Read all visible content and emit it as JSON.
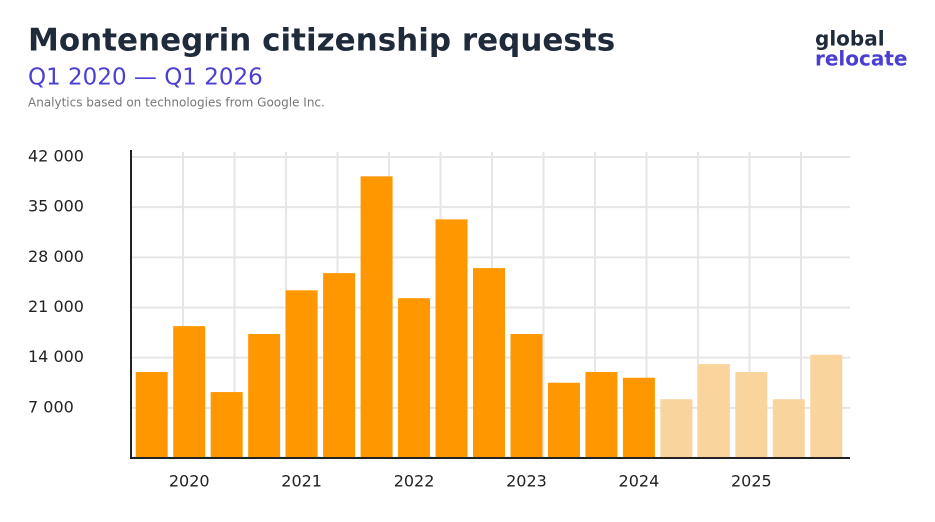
{
  "chart_data": {
    "type": "bar",
    "title": "Montenegrin citizenship requests",
    "subtitle": "Q1 2020 — Q1 2026",
    "source": "Analytics based on technologies from Google Inc.",
    "logo": [
      "global",
      "relocate"
    ],
    "categories": [
      null,
      "2020",
      null,
      null,
      "2021",
      null,
      null,
      "2022",
      null,
      null,
      "2023",
      null,
      null,
      "2024",
      null,
      null,
      "2025",
      null,
      null
    ],
    "values": [
      12000,
      18400,
      9200,
      17300,
      23400,
      25800,
      39300,
      22300,
      33300,
      26500,
      17300,
      10500,
      12000,
      11200,
      8200,
      13100,
      12000,
      8200,
      14400
    ],
    "colors": [
      "#ff9800",
      "#ff9800",
      "#ff9800",
      "#ff9800",
      "#ff9800",
      "#ff9800",
      "#ff9800",
      "#ff9800",
      "#ff9800",
      "#ff9800",
      "#ff9800",
      "#ff9800",
      "#ff9800",
      "#ff9800",
      "#f9d49c",
      "#f9d49c",
      "#f9d49c",
      "#f9d49c",
      "#f9d49c"
    ],
    "ylim": [
      0,
      42000
    ],
    "yticks": [
      {
        "value": 7000,
        "label": "7 000"
      },
      {
        "value": 14000,
        "label": "14 000"
      },
      {
        "value": 21000,
        "label": "21 000"
      },
      {
        "value": 28000,
        "label": "28 000"
      },
      {
        "value": 35000,
        "label": "35 000"
      },
      {
        "value": 42000,
        "label": "42 000"
      }
    ],
    "grid": true
  }
}
